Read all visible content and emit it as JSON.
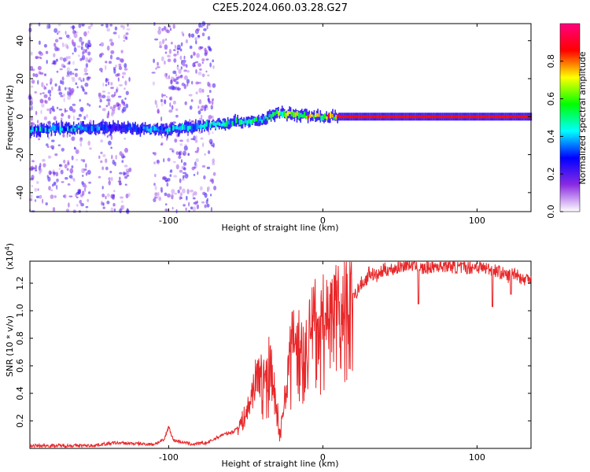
{
  "figure_title": "C2E5.2024.060.03.28.G27",
  "chart_data": [
    {
      "type": "heatmap",
      "xlabel": "Height of straight line (km)",
      "ylabel": "Frequency (Hz)",
      "xlim": [
        -190,
        135
      ],
      "ylim": [
        -50,
        49
      ],
      "x_ticks": [
        -100,
        0,
        100
      ],
      "y_ticks": [
        -40,
        -20,
        0,
        20,
        40
      ],
      "colorbar": {
        "label": "Normalized spectral amplitude",
        "range": [
          0,
          1
        ],
        "ticks": [
          0.0,
          0.2,
          0.4,
          0.6,
          0.8
        ],
        "tick_labels": [
          "0.0",
          "0.2",
          "0.4",
          "0.6",
          "0.8"
        ],
        "colors": [
          "#ffffff",
          "#8a2be2",
          "#0000ff",
          "#00ffff",
          "#00ff00",
          "#ffff00",
          "#ff0000",
          "#ff0080"
        ]
      },
      "signal_track": [
        {
          "x": -190,
          "freq": -7,
          "amp": 0.45
        },
        {
          "x": -160,
          "freq": -6,
          "amp": 0.45
        },
        {
          "x": -130,
          "freq": -6,
          "amp": 0.3
        },
        {
          "x": -100,
          "freq": -7,
          "amp": 0.45
        },
        {
          "x": -80,
          "freq": -5,
          "amp": 0.45
        },
        {
          "x": -60,
          "freq": -3,
          "amp": 0.5
        },
        {
          "x": -40,
          "freq": -2,
          "amp": 0.5
        },
        {
          "x": -30,
          "freq": 2,
          "amp": 0.65
        },
        {
          "x": -20,
          "freq": 1,
          "amp": 0.8
        },
        {
          "x": 0,
          "freq": 0,
          "amp": 0.8
        },
        {
          "x": 10,
          "freq": 0,
          "amp": 0.85
        },
        {
          "x": 135,
          "freq": 0,
          "amp": 0.85
        }
      ],
      "noise_bands": [
        [
          -190,
          -150
        ],
        [
          -145,
          -125
        ],
        [
          -110,
          -80
        ],
        [
          -80,
          -70
        ]
      ]
    },
    {
      "type": "line",
      "xlabel": "Height of straight line (km)",
      "ylabel": "SNR (10 * v/v)",
      "scale_label": "(x10",
      "scale_exponent": "4",
      "scale_close": ")",
      "xlim": [
        -190,
        135
      ],
      "ylim": [
        0,
        1.36
      ],
      "x_ticks": [
        -100,
        0,
        100
      ],
      "y_ticks": [
        0.2,
        0.4,
        0.6,
        0.8,
        1.0,
        1.2
      ],
      "y_tick_labels": [
        "0.2",
        "0.4",
        "0.6",
        "0.8",
        "1.0",
        "1.2"
      ],
      "color": "#e8282a",
      "x": [
        -190,
        -150,
        -135,
        -110,
        -103,
        -100,
        -97,
        -85,
        -75,
        -65,
        -58,
        -52,
        -48,
        -45,
        -42,
        -38,
        -35,
        -32,
        -30,
        -28,
        -25,
        -22,
        -20,
        -15,
        -12,
        -8,
        -5,
        -2,
        0,
        5,
        8,
        12,
        15,
        20,
        25,
        28,
        30,
        35,
        40,
        45,
        50,
        55,
        60,
        65,
        70,
        80,
        90,
        100,
        110,
        115,
        120,
        125,
        130,
        135
      ],
      "y": [
        0.02,
        0.02,
        0.04,
        0.03,
        0.06,
        0.16,
        0.06,
        0.03,
        0.04,
        0.1,
        0.12,
        0.2,
        0.3,
        0.45,
        0.55,
        0.5,
        0.62,
        0.52,
        0.35,
        0.08,
        0.4,
        0.6,
        0.85,
        0.9,
        0.7,
        0.95,
        1.0,
        0.9,
        1.0,
        1.05,
        1.1,
        1.02,
        1.18,
        1.1,
        1.2,
        1.22,
        1.28,
        1.25,
        1.3,
        1.3,
        1.32,
        1.34,
        1.33,
        1.3,
        1.32,
        1.33,
        1.31,
        1.32,
        1.3,
        1.28,
        1.25,
        1.28,
        1.22,
        1.25
      ],
      "dips": [
        {
          "x": 62,
          "y": 1.05
        },
        {
          "x": 110,
          "y": 1.03
        },
        {
          "x": 122,
          "y": 1.12
        }
      ]
    }
  ]
}
